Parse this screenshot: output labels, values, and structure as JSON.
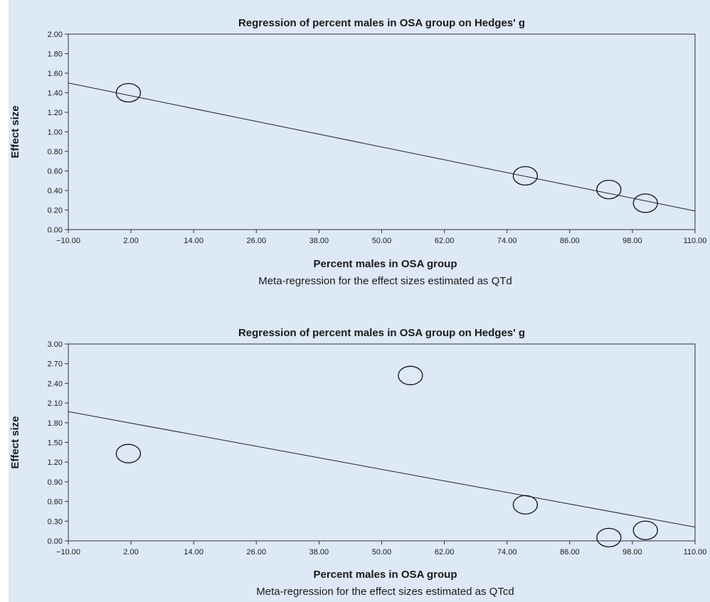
{
  "chart_data": [
    {
      "type": "scatter",
      "title": "Regression of percent males in OSA group on Hedges' g",
      "xlabel": "Percent males in OSA group",
      "ylabel": "Effect size",
      "caption": "Meta-regression for the effect sizes estimated as QTd",
      "xlim": [
        -10,
        110
      ],
      "ylim": [
        0,
        2
      ],
      "x_ticks": [
        "-10.00",
        "2.00",
        "14.00",
        "26.00",
        "38.00",
        "50.00",
        "62.00",
        "74.00",
        "86.00",
        "98.00",
        "110.00"
      ],
      "y_ticks": [
        "0.00",
        "0.20",
        "0.40",
        "0.60",
        "0.80",
        "1.00",
        "1.20",
        "1.40",
        "1.60",
        "1.80",
        "2.00"
      ],
      "points": [
        {
          "x": 1.5,
          "y": 1.4
        },
        {
          "x": 77.5,
          "y": 0.55
        },
        {
          "x": 93.5,
          "y": 0.41
        },
        {
          "x": 100.5,
          "y": 0.27
        }
      ],
      "regression_line": {
        "x": [
          -10,
          110
        ],
        "y": [
          1.5,
          0.19
        ]
      },
      "grid": false,
      "marker": "open-circle",
      "background": "#dde9f7"
    },
    {
      "type": "scatter",
      "title": "Regression of percent males in OSA group on Hedges' g",
      "xlabel": "Percent males in OSA group",
      "ylabel": "Effect size",
      "caption": "Meta-regression for the effect sizes estimated as QTcd",
      "xlim": [
        -10,
        110
      ],
      "ylim": [
        0,
        3
      ],
      "x_ticks": [
        "-10.00",
        "2.00",
        "14.00",
        "26.00",
        "38.00",
        "50.00",
        "62.00",
        "74.00",
        "86.00",
        "98.00",
        "110.00"
      ],
      "y_ticks": [
        "0.00",
        "0.30",
        "0.60",
        "0.90",
        "1.20",
        "1.50",
        "1.80",
        "2.10",
        "2.40",
        "2.70",
        "3.00"
      ],
      "points": [
        {
          "x": 1.5,
          "y": 1.33
        },
        {
          "x": 55.5,
          "y": 2.52
        },
        {
          "x": 77.5,
          "y": 0.55
        },
        {
          "x": 93.5,
          "y": 0.05
        },
        {
          "x": 100.5,
          "y": 0.16
        }
      ],
      "regression_line": {
        "x": [
          -10,
          110
        ],
        "y": [
          1.97,
          0.21
        ]
      },
      "grid": false,
      "marker": "open-circle",
      "background": "#dde9f7"
    }
  ]
}
